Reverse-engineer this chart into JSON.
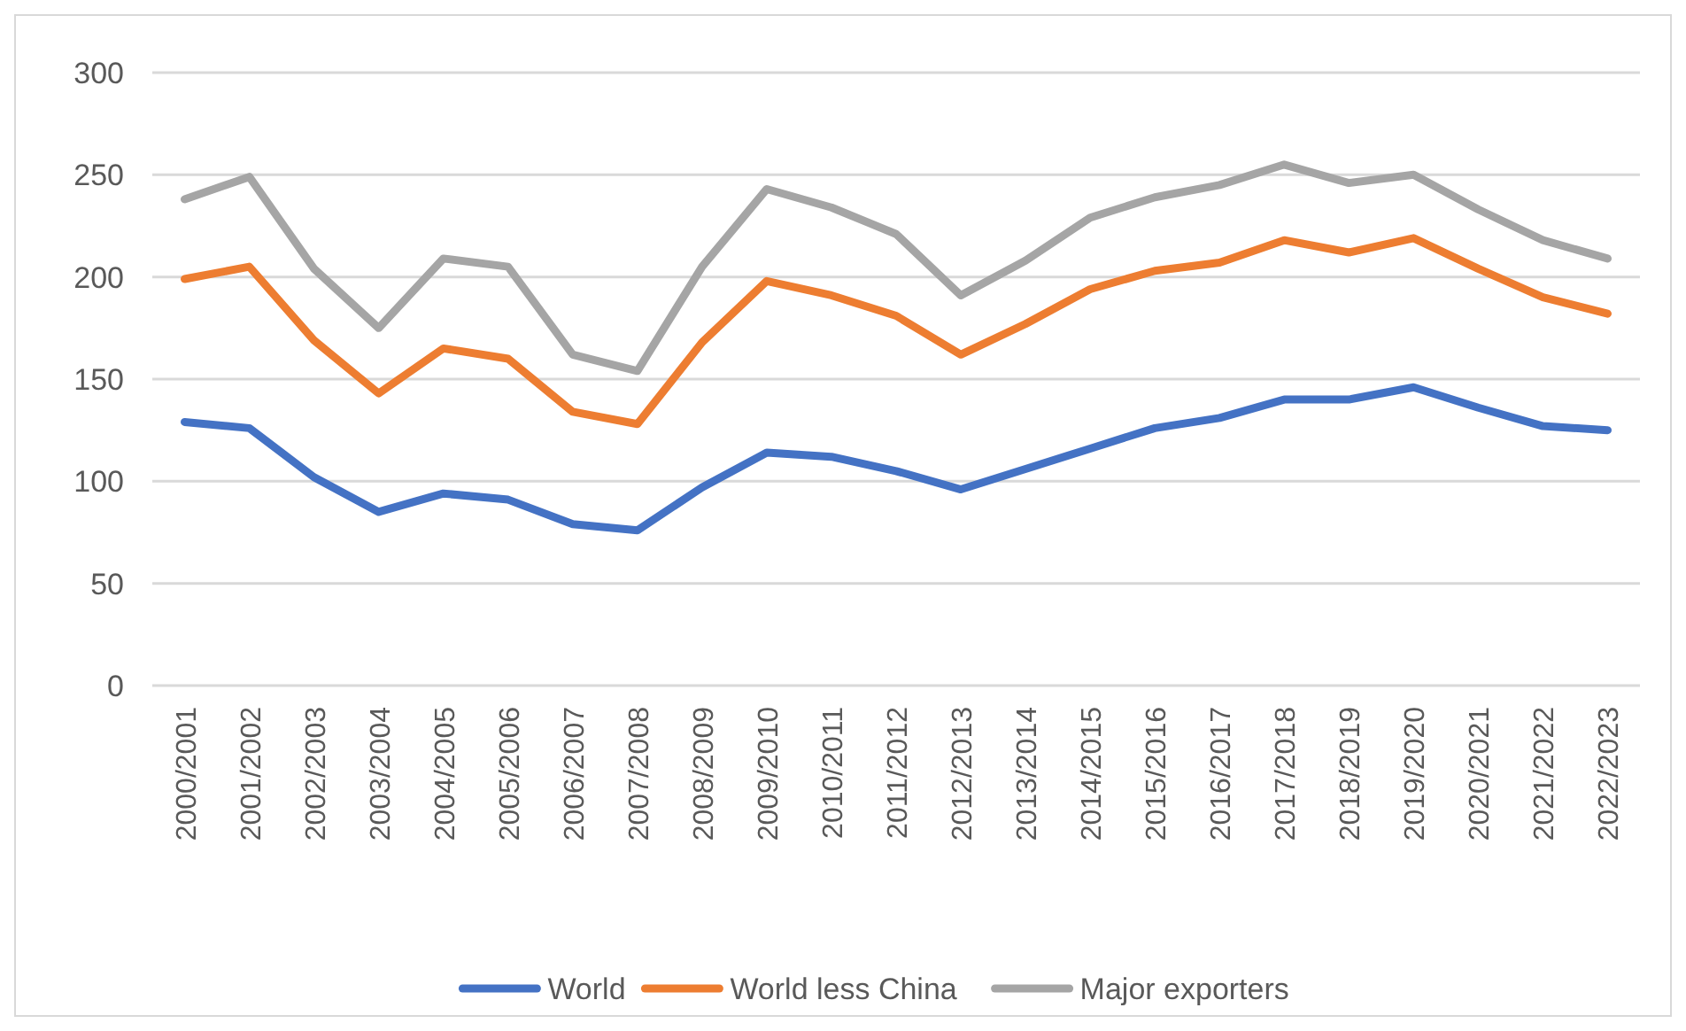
{
  "chart_data": {
    "type": "line",
    "categories": [
      "2000/2001",
      "2001/2002",
      "2002/2003",
      "2003/2004",
      "2004/2005",
      "2005/2006",
      "2006/2007",
      "2007/2008",
      "2008/2009",
      "2009/2010",
      "2010/2011",
      "2011/2012",
      "2012/2013",
      "2013/2014",
      "2014/2015",
      "2015/2016",
      "2016/2017",
      "2017/2018",
      "2018/2019",
      "2019/2020",
      "2020/2021",
      "2021/2022",
      "2022/2023"
    ],
    "series": [
      {
        "name": "World",
        "color": "#4472c4",
        "values": [
          129,
          126,
          102,
          85,
          94,
          91,
          79,
          76,
          97,
          114,
          112,
          105,
          96,
          106,
          116,
          126,
          131,
          140,
          140,
          146,
          136,
          127,
          125
        ]
      },
      {
        "name": "World less China",
        "color": "#ed7d31",
        "values": [
          199,
          205,
          169,
          143,
          165,
          160,
          134,
          128,
          168,
          198,
          191,
          181,
          162,
          177,
          194,
          203,
          207,
          218,
          212,
          219,
          204,
          190,
          182
        ]
      },
      {
        "name": "Major exporters",
        "color": "#a5a5a5",
        "values": [
          238,
          249,
          204,
          175,
          209,
          205,
          162,
          154,
          205,
          243,
          234,
          221,
          191,
          208,
          229,
          239,
          245,
          255,
          246,
          250,
          233,
          218,
          209
        ]
      }
    ],
    "ylim": [
      0,
      300
    ],
    "yticks": [
      0,
      50,
      100,
      150,
      200,
      250,
      300
    ],
    "grid": "y",
    "legend": "bottom",
    "marker": "none",
    "line_style": "solid"
  }
}
